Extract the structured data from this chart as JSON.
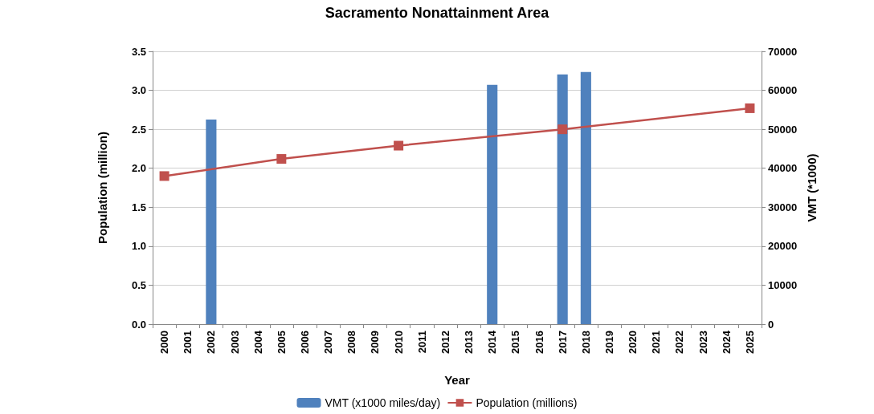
{
  "chart_data": {
    "type": "bar",
    "title": "Sacramento Nonattainment Area",
    "xlabel": "Year",
    "ylabel": "Population (million)",
    "y2label": "VMT (*1000)",
    "categories": [
      "2000",
      "2001",
      "2002",
      "2003",
      "2004",
      "2005",
      "2006",
      "2007",
      "2008",
      "2009",
      "2010",
      "2011",
      "2012",
      "2013",
      "2014",
      "2015",
      "2016",
      "2017",
      "2018",
      "2019",
      "2020",
      "2021",
      "2022",
      "2023",
      "2024",
      "2025"
    ],
    "series": [
      {
        "name": "VMT (x1000 miles/day)",
        "axis": "y2",
        "color": "#4f81bd",
        "values": [
          null,
          null,
          52500,
          null,
          null,
          null,
          null,
          null,
          null,
          null,
          null,
          null,
          null,
          null,
          61400,
          null,
          null,
          64100,
          64700,
          null,
          null,
          null,
          null,
          null,
          null,
          null
        ]
      },
      {
        "name": "Population (millions)",
        "type": "line",
        "color": "#c0504d",
        "marker": "square",
        "values": [
          1.9,
          null,
          null,
          null,
          null,
          2.12,
          null,
          null,
          null,
          null,
          2.29,
          null,
          null,
          null,
          null,
          null,
          null,
          2.5,
          null,
          null,
          null,
          null,
          null,
          null,
          null,
          2.77
        ]
      }
    ],
    "ylim": [
      0,
      3.5
    ],
    "yticks": [
      {
        "value": 0,
        "label": "0.0"
      },
      0.5,
      {
        "value": 1,
        "label": "1.0"
      },
      1.5,
      {
        "value": 2,
        "label": "2.0"
      },
      2.5,
      {
        "value": 3,
        "label": "3.0"
      },
      3.5
    ],
    "y2lim": [
      0,
      70000
    ],
    "y2ticks": [
      0,
      10000,
      20000,
      30000,
      40000,
      50000,
      60000,
      70000
    ],
    "grid": "y",
    "legend": "bottom"
  }
}
